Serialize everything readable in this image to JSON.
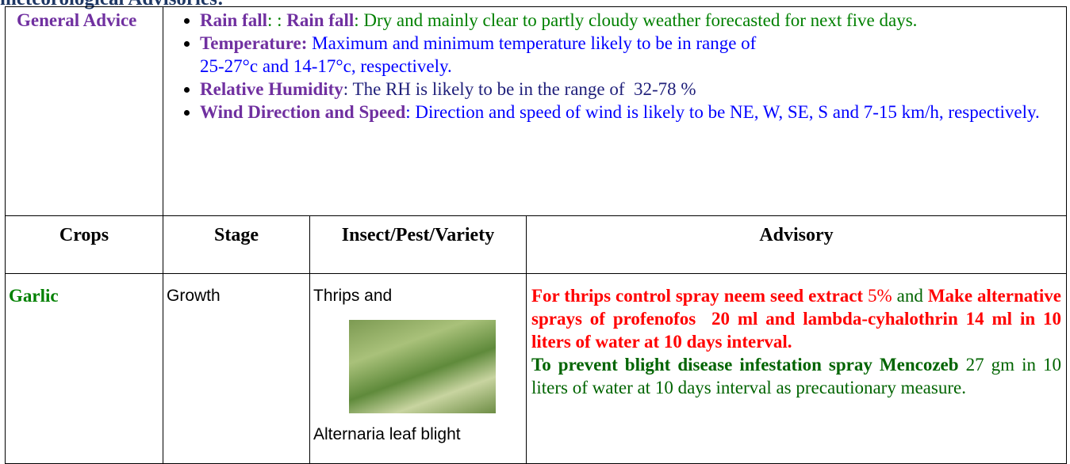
{
  "heading": "meteorological Advisories:",
  "general_advice": {
    "label": "General Advice",
    "items": [
      [
        "Rain fall",
        ": : ",
        "Rain fall",
        ": Dry and mainly clear to partly cloudy weather forecasted for next five days."
      ],
      [
        "Temperature:",
        "Maximum and minimum temperature likely to be in range of",
        "25-27°c and 14-17°c, respectively."
      ],
      [
        "Relative Humidity",
        ": The RH is likely to be in the range of  32-78 %"
      ],
      [
        "Wind Direction and Speed",
        ": Direction and speed of wind is likely to be NE, W, SE, S  and 7-15 km/h, respectively."
      ]
    ]
  },
  "table": {
    "headers": [
      "Crops",
      "Stage",
      "Insect/Pest/Variety",
      "Advisory"
    ],
    "rows": [
      {
        "crop": "Garlic",
        "stage": "Growth",
        "pest": [
          "Thrips and",
          "Alternaria leaf blight"
        ],
        "advisory": [
          "For thrips control spray neem seed extract",
          "5%",
          "and",
          "Make alternative sprays of profenofos  20 ml and lambda-cyhalothrin 14 ml in 10 liters of water at 10 days interval.",
          "To prevent blight disease infestation spray Mencozeb",
          "27 gm in 10 liters of water at 10 days interval as precautionary measure."
        ]
      }
    ]
  }
}
